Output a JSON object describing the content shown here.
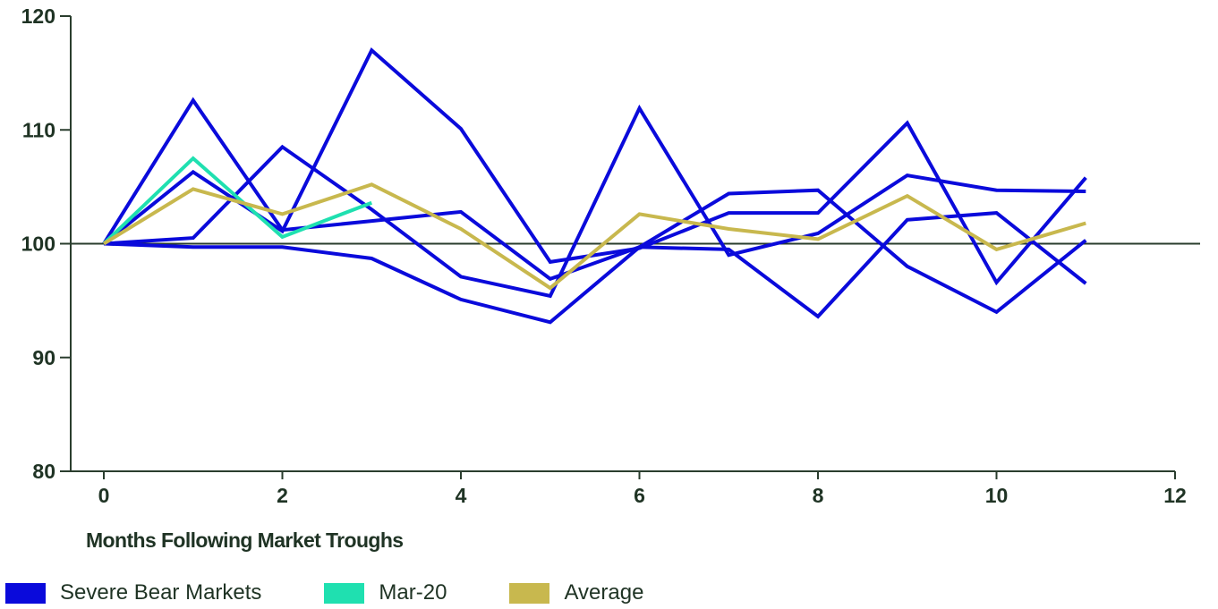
{
  "chart_data": {
    "type": "line",
    "xlabel": "Months Following Market Troughs",
    "ylabel": "",
    "xlim": [
      0,
      12
    ],
    "ylim": [
      80,
      120
    ],
    "x_ticks": [
      0,
      2,
      4,
      6,
      8,
      10,
      12
    ],
    "y_ticks": [
      80,
      90,
      100,
      110,
      120
    ],
    "x_tick_labels": [
      "0",
      "2",
      "4",
      "6",
      "8",
      "10",
      "12"
    ],
    "y_tick_labels": [
      "80",
      "90",
      "100",
      "110",
      "120"
    ],
    "reference_line": 100,
    "grid": false,
    "legend_position": "bottom-left",
    "series": [
      {
        "name": "Severe Bear Markets",
        "color": "#0a0adb",
        "x": [
          0,
          1,
          2,
          3,
          4,
          5,
          6,
          7,
          8,
          9,
          10,
          11
        ],
        "y": [
          100,
          112.6,
          101.2,
          102.0,
          102.8,
          96.9,
          99.7,
          104.4,
          104.7,
          98.0,
          94.0,
          100.3
        ]
      },
      {
        "name": "Severe Bear Markets",
        "color": "#0a0adb",
        "x": [
          0,
          1,
          2,
          3,
          4,
          5,
          6,
          7,
          8,
          9,
          10,
          11
        ],
        "y": [
          100,
          106.3,
          101.1,
          117.0,
          110.1,
          98.4,
          99.6,
          102.7,
          102.7,
          110.6,
          96.6,
          105.8
        ]
      },
      {
        "name": "Severe Bear Markets",
        "color": "#0a0adb",
        "x": [
          0,
          1,
          2,
          3,
          4,
          5,
          6,
          7,
          8,
          9,
          10,
          11
        ],
        "y": [
          100,
          100.5,
          108.5,
          103.0,
          97.1,
          95.4,
          111.9,
          99.0,
          100.9,
          106.0,
          104.7,
          104.6
        ]
      },
      {
        "name": "Severe Bear Markets",
        "color": "#0a0adb",
        "x": [
          0,
          1,
          2,
          3,
          4,
          5,
          6,
          7,
          8,
          9,
          10,
          11
        ],
        "y": [
          100,
          99.7,
          99.7,
          98.7,
          95.1,
          93.1,
          99.7,
          99.5,
          93.6,
          102.1,
          102.7,
          96.5
        ]
      },
      {
        "name": "Mar-20",
        "color": "#1fe0b0",
        "x": [
          0,
          1,
          2,
          3
        ],
        "y": [
          100,
          107.5,
          100.6,
          103.6
        ]
      },
      {
        "name": "Average",
        "color": "#c8b84e",
        "x": [
          0,
          1,
          2,
          3,
          4,
          5,
          6,
          7,
          8,
          9,
          10,
          11
        ],
        "y": [
          100,
          104.8,
          102.6,
          105.2,
          101.3,
          96.1,
          102.6,
          101.3,
          100.4,
          104.2,
          99.5,
          101.8
        ]
      }
    ]
  },
  "legend": [
    {
      "label": "Severe Bear Markets",
      "color": "#0a0adb"
    },
    {
      "label": "Mar-20",
      "color": "#1fe0b0"
    },
    {
      "label": "Average",
      "color": "#c8b84e"
    }
  ],
  "colors": {
    "axis": "#2a3d2e",
    "text": "#1f3324",
    "reference_line": "#2a3d2e"
  }
}
